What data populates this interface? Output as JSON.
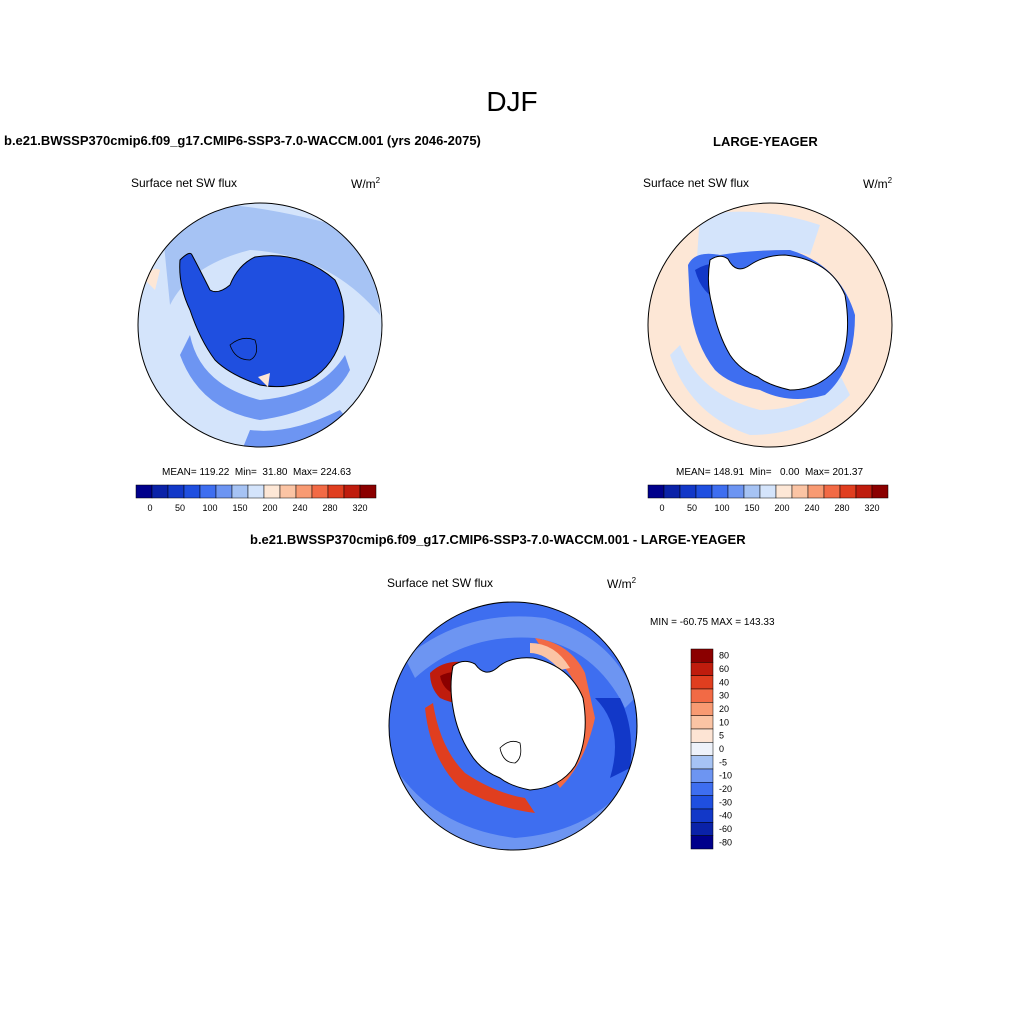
{
  "title": "DJF",
  "panels": [
    {
      "title": "b.e21.BWSSP370cmip6.f09_g17.CMIP6-SSP3-7.0-WACCM.001 (yrs 2046-2075)",
      "variable": "Surface net SW flux",
      "units": "W/m",
      "units_exp": "2",
      "stats": "MEAN= 119.22  Min=  31.80  Max= 224.63"
    },
    {
      "title": "LARGE-YEAGER",
      "variable": "Surface net SW flux",
      "units": "W/m",
      "units_exp": "2",
      "stats": "MEAN= 148.91  Min=   0.00  Max= 201.37"
    },
    {
      "title": "b.e21.BWSSP370cmip6.f09_g17.CMIP6-SSP3-7.0-WACCM.001 - LARGE-YEAGER",
      "variable": "Surface net SW flux",
      "units": "W/m",
      "units_exp": "2",
      "stats": "MIN = -60.75 MAX = 143.33"
    }
  ],
  "colorbar_abs": {
    "colors": [
      "#00008b",
      "#0a22a8",
      "#1238c8",
      "#1f4fe0",
      "#3e6ef0",
      "#6d95f2",
      "#a6c3f4",
      "#d4e4fb",
      "#fde7d6",
      "#fbc4a4",
      "#f89a72",
      "#f26a45",
      "#e03e1f",
      "#bf1c0d",
      "#8b0000"
    ],
    "tick_labels": [
      "0",
      "50",
      "100",
      "150",
      "200",
      "240",
      "280",
      "320"
    ]
  },
  "colorbar_diff": {
    "colors": [
      "#00008b",
      "#0a22a8",
      "#1238c8",
      "#1f4fe0",
      "#3e6ef0",
      "#6d95f2",
      "#a6c3f4",
      "#eef2fa",
      "#fde4d4",
      "#fbc4a4",
      "#f89a72",
      "#f26a45",
      "#e03e1f",
      "#bf1c0d",
      "#8b0000"
    ],
    "tick_labels": [
      "80",
      "60",
      "40",
      "30",
      "20",
      "10",
      "5",
      "0",
      "-5",
      "-10",
      "-20",
      "-30",
      "-40",
      "-60",
      "-80"
    ]
  }
}
